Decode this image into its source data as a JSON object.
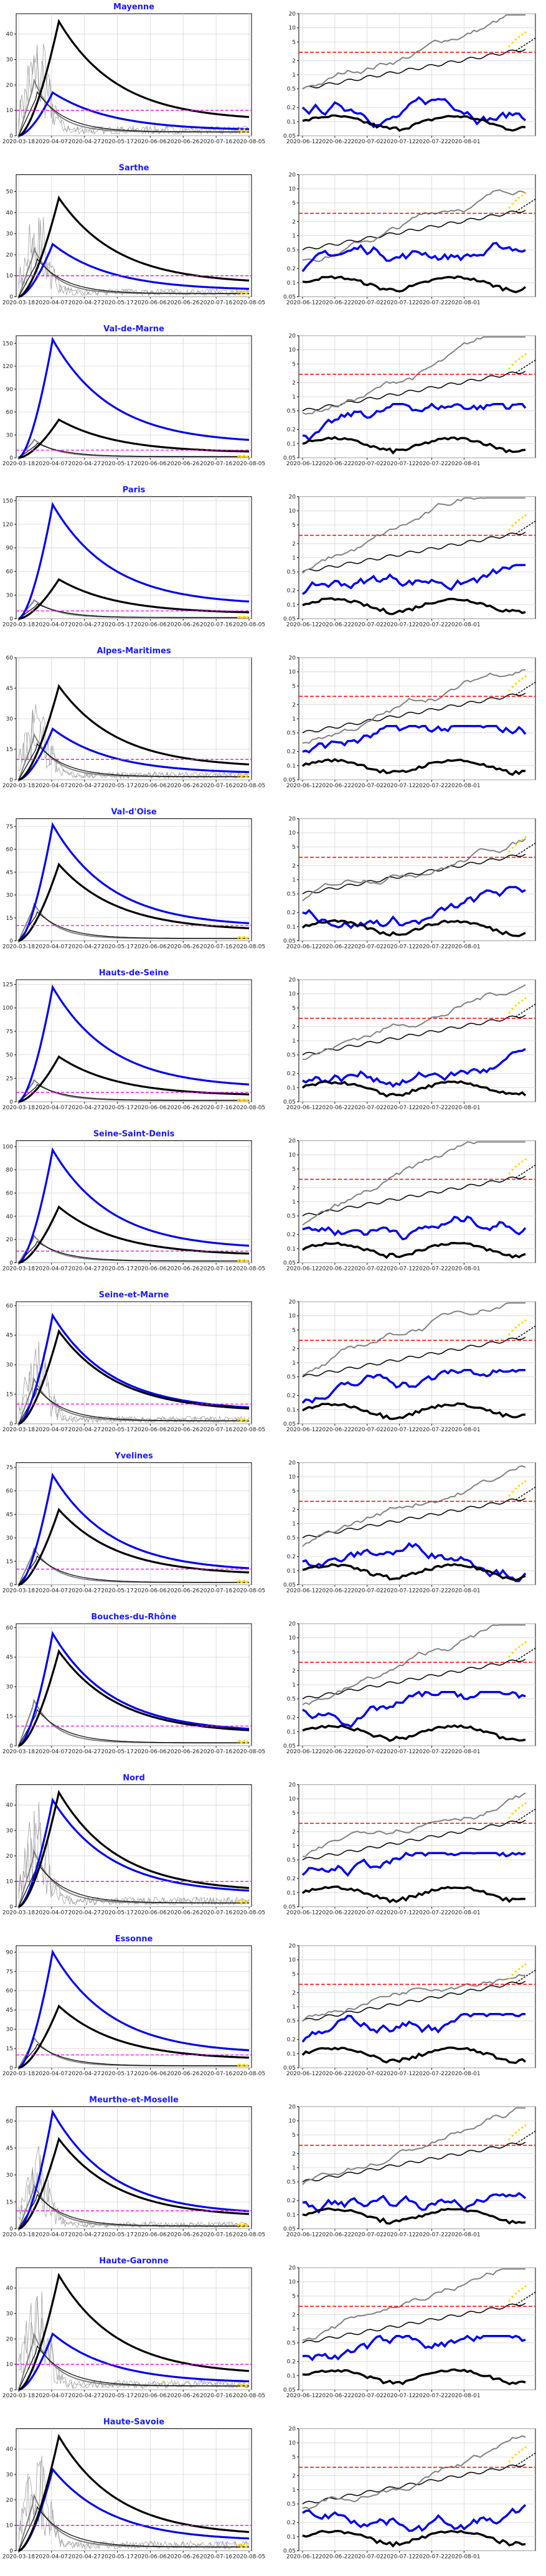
{
  "chart_data": {
    "type": "line",
    "layout": "small multiples, 16 rows by 2 columns",
    "common": {
      "left_x_ticks": [
        "2020-03-18",
        "2020-04-07",
        "2020-04-27",
        "2020-05-17",
        "2020-06-06",
        "2020-06-26",
        "2020-07-16",
        "2020-08-05"
      ],
      "right_x_ticks": [
        "2020-06-12",
        "2020-06-22",
        "2020-07-02",
        "2020-07-12",
        "2020-07-22",
        "2020-08-01"
      ],
      "right_y_scale": "log",
      "right_y_ticks": [
        "0.05",
        "0.1",
        "0.2",
        "0.5",
        "1",
        "2",
        "5",
        "10",
        "20"
      ],
      "right_ylim": [
        0.05,
        20
      ],
      "right_threshold": 3,
      "grid": true,
      "colors": {
        "series_a": "#000000",
        "series_b": "#0000ee",
        "series_c": "#808080",
        "marker": "#ffd700",
        "threshold": "#ff0000",
        "threshold_left": "#ff00ff"
      }
    },
    "panels": [
      {
        "title": "Mayenne",
        "left_ylim": [
          0,
          48
        ],
        "left_y_ticks": [
          "0",
          "10",
          "20",
          "30",
          "40"
        ],
        "left_threshold": 10,
        "black_peak": 45,
        "blue_peak": 17,
        "noise": true
      },
      {
        "title": "Sarthe",
        "left_ylim": [
          0,
          58
        ],
        "left_y_ticks": [
          "0",
          "10",
          "20",
          "30",
          "40",
          "50"
        ],
        "left_threshold": 10,
        "black_peak": 47,
        "blue_peak": 25,
        "noise": true
      },
      {
        "title": "Val-de-Marne",
        "left_ylim": [
          0,
          160
        ],
        "left_y_ticks": [
          "0",
          "30",
          "60",
          "90",
          "120",
          "150"
        ],
        "left_threshold": 10,
        "black_peak": 50,
        "blue_peak": 155,
        "noise": false
      },
      {
        "title": "Paris",
        "left_ylim": [
          0,
          155
        ],
        "left_y_ticks": [
          "0",
          "30",
          "60",
          "90",
          "120",
          "150"
        ],
        "left_threshold": 10,
        "black_peak": 50,
        "blue_peak": 145,
        "noise": false
      },
      {
        "title": "Alpes-Maritimes",
        "left_ylim": [
          0,
          60
        ],
        "left_y_ticks": [
          "0",
          "15",
          "30",
          "45",
          "60"
        ],
        "left_threshold": 10,
        "black_peak": 46,
        "blue_peak": 25,
        "noise": true
      },
      {
        "title": "Val-d'Oise",
        "left_ylim": [
          0,
          80
        ],
        "left_y_ticks": [
          "0",
          "15",
          "30",
          "45",
          "60",
          "75"
        ],
        "left_threshold": 10,
        "black_peak": 50,
        "blue_peak": 76,
        "noise": false
      },
      {
        "title": "Hauts-de-Seine",
        "left_ylim": [
          0,
          130
        ],
        "left_y_ticks": [
          "0",
          "25",
          "50",
          "75",
          "100",
          "125"
        ],
        "left_threshold": 10,
        "black_peak": 48,
        "blue_peak": 122,
        "noise": false
      },
      {
        "title": "Seine-Saint-Denis",
        "left_ylim": [
          0,
          105
        ],
        "left_y_ticks": [
          "0",
          "20",
          "40",
          "60",
          "80",
          "100"
        ],
        "left_threshold": 10,
        "black_peak": 48,
        "blue_peak": 97,
        "noise": false
      },
      {
        "title": "Seine-et-Marne",
        "left_ylim": [
          0,
          62
        ],
        "left_y_ticks": [
          "0",
          "15",
          "30",
          "45",
          "60"
        ],
        "left_threshold": 10,
        "black_peak": 47,
        "blue_peak": 55,
        "noise": true
      },
      {
        "title": "Yvelines",
        "left_ylim": [
          0,
          78
        ],
        "left_y_ticks": [
          "0",
          "15",
          "30",
          "45",
          "60",
          "75"
        ],
        "left_threshold": 10,
        "black_peak": 48,
        "blue_peak": 70,
        "noise": false
      },
      {
        "title": "Bouches-du-Rhône",
        "left_ylim": [
          0,
          62
        ],
        "left_y_ticks": [
          "0",
          "15",
          "30",
          "45",
          "60"
        ],
        "left_threshold": 10,
        "black_peak": 48,
        "blue_peak": 57,
        "noise": false
      },
      {
        "title": "Nord",
        "left_ylim": [
          0,
          48
        ],
        "left_y_ticks": [
          "0",
          "10",
          "20",
          "30",
          "40"
        ],
        "left_threshold": 10,
        "black_peak": 45,
        "blue_peak": 42,
        "noise": true
      },
      {
        "title": "Essonne",
        "left_ylim": [
          0,
          95
        ],
        "left_y_ticks": [
          "0",
          "15",
          "30",
          "45",
          "60",
          "75",
          "90"
        ],
        "left_threshold": 10,
        "black_peak": 48,
        "blue_peak": 90,
        "noise": false
      },
      {
        "title": "Meurthe-et-Moselle",
        "left_ylim": [
          0,
          68
        ],
        "left_y_ticks": [
          "0",
          "15",
          "30",
          "45",
          "60"
        ],
        "left_threshold": 10,
        "black_peak": 50,
        "blue_peak": 65,
        "noise": true
      },
      {
        "title": "Haute-Garonne",
        "left_ylim": [
          0,
          48
        ],
        "left_y_ticks": [
          "0",
          "10",
          "20",
          "30",
          "40"
        ],
        "left_threshold": 10,
        "black_peak": 45,
        "blue_peak": 22,
        "noise": true
      },
      {
        "title": "Haute-Savoie",
        "left_ylim": [
          0,
          48
        ],
        "left_y_ticks": [
          "0",
          "10",
          "20",
          "30",
          "40"
        ],
        "left_threshold": 10,
        "black_peak": 45,
        "blue_peak": 32,
        "noise": true
      }
    ]
  }
}
